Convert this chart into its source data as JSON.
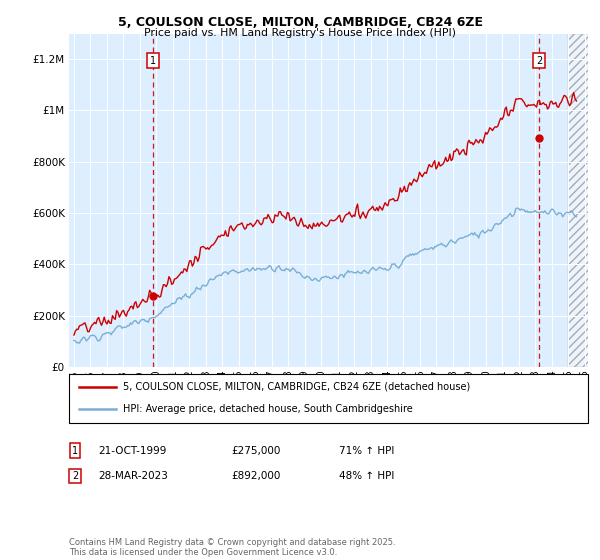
{
  "title_line1": "5, COULSON CLOSE, MILTON, CAMBRIDGE, CB24 6ZE",
  "title_line2": "Price paid vs. HM Land Registry's House Price Index (HPI)",
  "legend_red": "5, COULSON CLOSE, MILTON, CAMBRIDGE, CB24 6ZE (detached house)",
  "legend_blue": "HPI: Average price, detached house, South Cambridgeshire",
  "annotation1_date": "21-OCT-1999",
  "annotation1_price": "£275,000",
  "annotation1_hpi": "71% ↑ HPI",
  "annotation2_date": "28-MAR-2023",
  "annotation2_price": "£892,000",
  "annotation2_hpi": "48% ↑ HPI",
  "footnote": "Contains HM Land Registry data © Crown copyright and database right 2025.\nThis data is licensed under the Open Government Licence v3.0.",
  "ylim": [
    0,
    1300000
  ],
  "yticks": [
    0,
    200000,
    400000,
    600000,
    800000,
    1000000,
    1200000
  ],
  "red_color": "#cc0000",
  "blue_color": "#7aafd4",
  "background_color": "#ddeeff",
  "purchase1_x": 1999.81,
  "purchase1_y": 275000,
  "purchase2_x": 2023.24,
  "purchase2_y": 892000,
  "xmin": 1994.7,
  "xmax": 2026.2,
  "hatch_start": 2025.0
}
